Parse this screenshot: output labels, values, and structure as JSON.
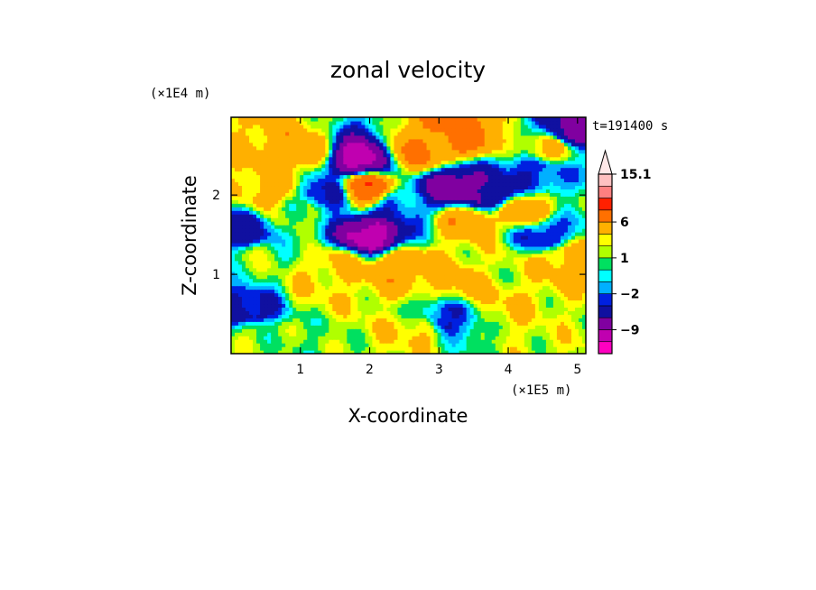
{
  "chart_data": {
    "type": "heatmap",
    "title": "zonal velocity",
    "xlabel": "X-coordinate",
    "ylabel": "Z-coordinate",
    "x_scale_note": "(×1E5 m)",
    "y_scale_note": "(×1E4 m)",
    "time_label": "t=191400 s",
    "xlim": [
      0,
      5.12
    ],
    "ylim": [
      0,
      2.98
    ],
    "x_ticks": [
      1,
      2,
      3,
      4,
      5
    ],
    "x_tick_labels": [
      "1",
      "2",
      "3",
      "4",
      "5"
    ],
    "y_ticks": [
      1,
      2
    ],
    "y_tick_labels": [
      "1",
      "2"
    ],
    "colorbar": {
      "levels": [
        -15,
        -12,
        -9,
        -6,
        -3,
        -2,
        -1,
        0,
        1,
        2,
        3,
        6,
        9,
        12,
        15.1
      ],
      "colors": [
        "#ff00c0",
        "#c000b0",
        "#8000a0",
        "#1010a0",
        "#0020e0",
        "#00b0ff",
        "#00ffff",
        "#00e060",
        "#b0ff00",
        "#ffff00",
        "#ffb000",
        "#ff7000",
        "#ff2000",
        "#ff8080",
        "#ffc0c0"
      ],
      "extend_color": "#ffe8e8",
      "labels": [
        {
          "value": 15.1,
          "text": "15.1"
        },
        {
          "value": 6,
          "text": "6"
        },
        {
          "value": 1,
          "text": "1"
        },
        {
          "value": -2,
          "text": "−2"
        },
        {
          "value": -9,
          "text": "−9"
        }
      ]
    },
    "features": [
      {
        "x": 1.85,
        "y": 2.45,
        "value": -10
      },
      {
        "x": 1.95,
        "y": 2.1,
        "value": 8
      },
      {
        "x": 2.0,
        "y": 1.5,
        "value": -10
      },
      {
        "x": 3.2,
        "y": 2.1,
        "value": -8
      },
      {
        "x": 3.7,
        "y": 2.0,
        "value": -6
      },
      {
        "x": 4.9,
        "y": 2.8,
        "value": -7
      },
      {
        "x": 4.6,
        "y": 2.6,
        "value": 4
      },
      {
        "x": 0.15,
        "y": 1.55,
        "value": -4
      },
      {
        "x": 0.3,
        "y": 0.55,
        "value": -4
      },
      {
        "x": 0.4,
        "y": 0.25,
        "value": 1.5
      },
      {
        "x": 1.55,
        "y": 1.1,
        "value": 3.5
      },
      {
        "x": 2.4,
        "y": 1.1,
        "value": 5
      },
      {
        "x": 3.35,
        "y": 0.9,
        "value": 4
      },
      {
        "x": 2.7,
        "y": 0.3,
        "value": 3
      },
      {
        "x": 3.4,
        "y": 1.7,
        "value": 5
      },
      {
        "x": 2.7,
        "y": 2.55,
        "value": 6
      },
      {
        "x": 3.3,
        "y": 2.75,
        "value": 7
      },
      {
        "x": 1.0,
        "y": 2.55,
        "value": 5
      },
      {
        "x": 1.35,
        "y": 2.0,
        "value": -4
      },
      {
        "x": 0.6,
        "y": 2.05,
        "value": 4
      },
      {
        "x": 4.2,
        "y": 1.8,
        "value": 5
      },
      {
        "x": 4.5,
        "y": 1.5,
        "value": -3
      },
      {
        "x": 4.8,
        "y": 1.2,
        "value": 4
      },
      {
        "x": 4.0,
        "y": 0.6,
        "value": 3
      },
      {
        "x": 4.8,
        "y": 0.4,
        "value": 2
      },
      {
        "x": 1.0,
        "y": 1.8,
        "value": 1.5
      },
      {
        "x": 0.4,
        "y": 1.2,
        "value": 1.2
      },
      {
        "x": 1.2,
        "y": 0.8,
        "value": 2.5
      },
      {
        "x": 3.85,
        "y": 1.1,
        "value": 2
      },
      {
        "x": 3.1,
        "y": 0.45,
        "value": -3
      },
      {
        "x": 2.5,
        "y": 1.9,
        "value": -2
      },
      {
        "x": 4.4,
        "y": 2.3,
        "value": -3
      }
    ]
  }
}
